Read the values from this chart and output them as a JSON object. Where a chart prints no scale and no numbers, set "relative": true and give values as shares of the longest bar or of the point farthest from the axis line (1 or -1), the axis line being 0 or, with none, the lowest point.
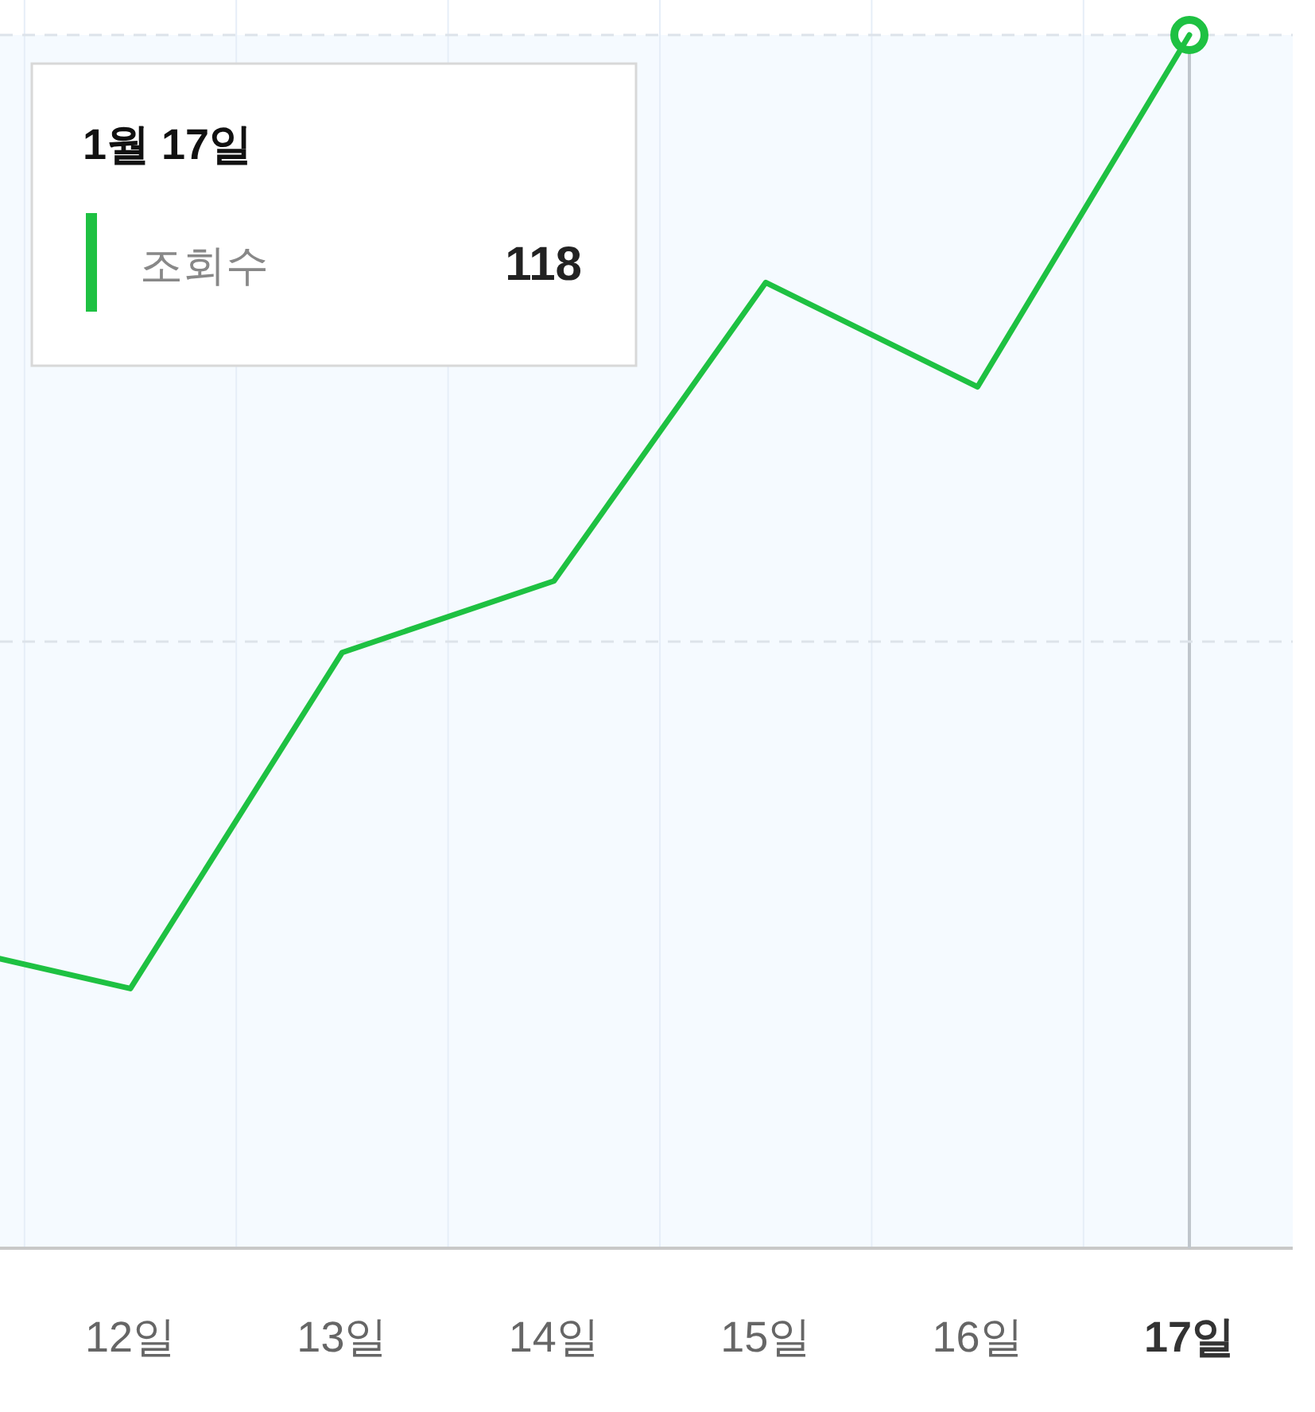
{
  "chart_data": {
    "type": "line",
    "relative": true,
    "legend_title": "1월 17일",
    "legend": "top left",
    "grid": "x",
    "marker": "none",
    "line_style": "solid",
    "categories": [
      null,
      "12일",
      "13일",
      "14일",
      "15일",
      "16일",
      "17일"
    ],
    "series": [
      {
        "name": "조회수",
        "color": "#1ec142",
        "values": [
          0.254,
          0.214,
          0.491,
          0.55,
          0.796,
          0.71,
          1
        ]
      }
    ],
    "ref_lines": [
      {
        "axis": "x",
        "value": "17일",
        "color": "#c0c6cc"
      },
      {
        "axis": "y",
        "value": 0.5,
        "color": "#dde3ea",
        "line_style": "dashed"
      },
      {
        "axis": "y",
        "value": 1,
        "color": "#dde3ea",
        "line_style": "dashed"
      }
    ],
    "bands": [
      {
        "axis": "y",
        "from": 0,
        "to": 1,
        "color": "#f5faff"
      }
    ],
    "annotations": [
      "118"
    ]
  }
}
